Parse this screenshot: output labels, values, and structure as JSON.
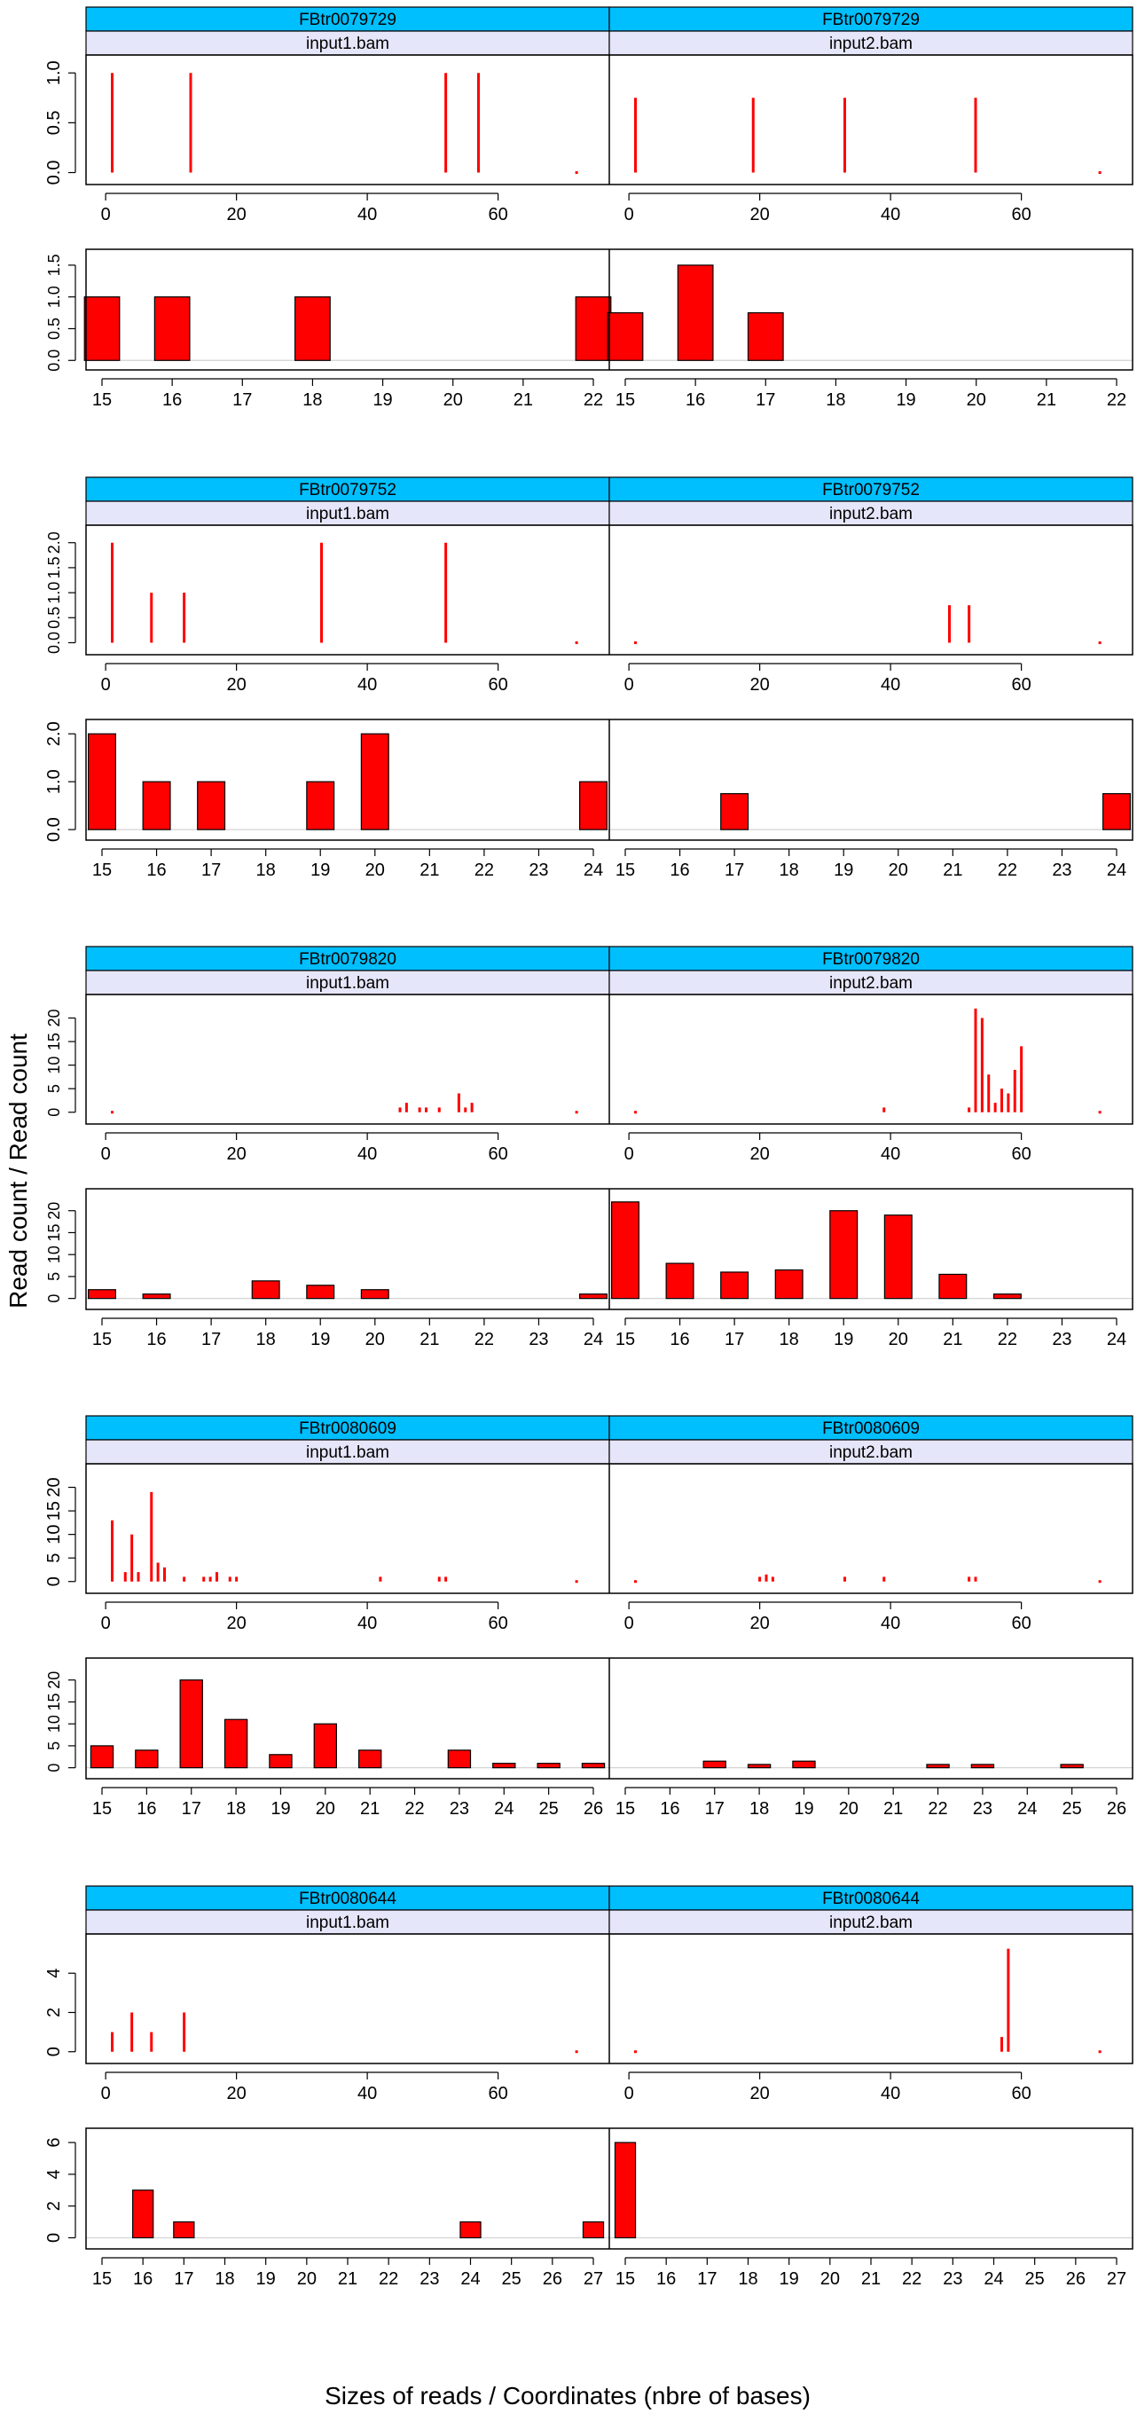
{
  "figure": {
    "ylabel": "Read count / Read count",
    "xlabel": "Sizes of reads / Coordinates (nbre of bases)"
  },
  "colors": {
    "strip_top": "#00BFFF",
    "strip_sub": "#E6E6FA",
    "bar_fill": "#FF0000",
    "bar_stroke": "#000000",
    "spike": "#FF0000",
    "zero_line": "#D3D3D3",
    "frame": "#000000"
  },
  "chart_data": [
    {
      "type": "bar",
      "transcript": "FBtr0079729",
      "coverage": {
        "xlim": [
          -3,
          77
        ],
        "xticks": [
          0,
          20,
          40,
          60
        ],
        "ylim": [
          -0.12,
          1.18
        ],
        "yticks": [
          0.0,
          0.5,
          1.0
        ],
        "ytick_labels": [
          "0.0",
          "0.5",
          "1.0"
        ],
        "panels": [
          {
            "strip": "FBtr0079729",
            "sample": "input1.bam",
            "spikes": [
              [
                1,
                1.0
              ],
              [
                13,
                1.0
              ],
              [
                52,
                1.0
              ],
              [
                57,
                1.0
              ]
            ],
            "dots": [
              72
            ]
          },
          {
            "strip": "FBtr0079729",
            "sample": "input2.bam",
            "spikes": [
              [
                1,
                0.75
              ],
              [
                19,
                0.75
              ],
              [
                33,
                0.75
              ],
              [
                53,
                0.75
              ]
            ],
            "dots": [
              72
            ]
          }
        ]
      },
      "sizes": {
        "categories": [
          15,
          16,
          17,
          18,
          19,
          20,
          21,
          22
        ],
        "ylim": [
          -0.15,
          1.75
        ],
        "yticks": [
          0.0,
          0.5,
          1.0,
          1.5
        ],
        "ytick_labels": [
          "0.0",
          "0.5",
          "1.0",
          "1.5"
        ],
        "tick_label_spacing": "tight",
        "panels": [
          {
            "sample": "input1.bam",
            "values": [
              1,
              1,
              0,
              1,
              0,
              0,
              0,
              1
            ]
          },
          {
            "sample": "input2.bam",
            "values": [
              0.75,
              1.5,
              0.75,
              0,
              0,
              0,
              0,
              0
            ]
          }
        ]
      }
    },
    {
      "type": "bar",
      "transcript": "FBtr0079752",
      "coverage": {
        "xlim": [
          -3,
          77
        ],
        "xticks": [
          0,
          20,
          40,
          60
        ],
        "ylim": [
          -0.24,
          2.35
        ],
        "yticks": [
          0.0,
          0.5,
          1.0,
          1.5,
          2.0
        ],
        "ytick_labels": [
          "0.0",
          "0.5",
          "1.0",
          "1.5",
          "2.0"
        ],
        "tick_label_spacing": "tight",
        "panels": [
          {
            "strip": "FBtr0079752",
            "sample": "input1.bam",
            "spikes": [
              [
                1,
                2.0
              ],
              [
                7,
                1.0
              ],
              [
                12,
                1.0
              ],
              [
                33,
                2.0
              ],
              [
                52,
                2.0
              ]
            ],
            "dots": [
              72
            ]
          },
          {
            "strip": "FBtr0079752",
            "sample": "input2.bam",
            "spikes": [
              [
                49,
                0.75
              ],
              [
                52,
                0.75
              ]
            ],
            "dots": [
              1,
              72
            ]
          }
        ]
      },
      "sizes": {
        "categories": [
          15,
          16,
          17,
          18,
          19,
          20,
          21,
          22,
          23,
          24
        ],
        "ylim": [
          -0.22,
          2.3
        ],
        "yticks": [
          0.0,
          1.0,
          2.0
        ],
        "ytick_labels": [
          "0.0",
          "1.0",
          "2.0"
        ],
        "panels": [
          {
            "sample": "input1.bam",
            "values": [
              2,
              1,
              1,
              0,
              1,
              2,
              0,
              0,
              0,
              1
            ]
          },
          {
            "sample": "input2.bam",
            "values": [
              0,
              0,
              0.75,
              0,
              0,
              0,
              0,
              0,
              0,
              0.75
            ]
          }
        ]
      }
    },
    {
      "type": "bar",
      "transcript": "FBtr0079820",
      "coverage": {
        "xlim": [
          -3,
          77
        ],
        "xticks": [
          0,
          20,
          40,
          60
        ],
        "ylim": [
          -2.5,
          25
        ],
        "yticks": [
          0,
          5,
          10,
          15,
          20
        ],
        "ytick_labels": [
          "0",
          "5",
          "10",
          "15",
          "20"
        ],
        "tick_label_spacing": "tight",
        "panels": [
          {
            "strip": "FBtr0079820",
            "sample": "input1.bam",
            "spikes": [
              [
                45,
                1
              ],
              [
                46,
                2
              ],
              [
                48,
                1
              ],
              [
                49,
                1
              ],
              [
                51,
                1
              ],
              [
                54,
                4
              ],
              [
                55,
                1
              ],
              [
                56,
                2
              ]
            ],
            "dots": [
              1,
              72
            ]
          },
          {
            "strip": "FBtr0079820",
            "sample": "input2.bam",
            "spikes": [
              [
                39,
                1
              ],
              [
                52,
                1
              ],
              [
                53,
                22
              ],
              [
                54,
                20
              ],
              [
                55,
                8
              ],
              [
                56,
                2
              ],
              [
                57,
                5
              ],
              [
                58,
                4
              ],
              [
                59,
                9
              ],
              [
                60,
                14
              ]
            ],
            "dots": [
              1,
              72
            ]
          }
        ]
      },
      "sizes": {
        "categories": [
          15,
          16,
          17,
          18,
          19,
          20,
          21,
          22,
          23,
          24
        ],
        "ylim": [
          -2.5,
          25
        ],
        "yticks": [
          0,
          5,
          10,
          15,
          20
        ],
        "ytick_labels": [
          "0",
          "5",
          "10",
          "15",
          "20"
        ],
        "tick_label_spacing": "tight",
        "panels": [
          {
            "sample": "input1.bam",
            "values": [
              2,
              1,
              0,
              4,
              3,
              2,
              0,
              0,
              0,
              1
            ]
          },
          {
            "sample": "input2.bam",
            "values": [
              22,
              8,
              6,
              6.5,
              20,
              19,
              5.5,
              1,
              0,
              0
            ]
          }
        ]
      }
    },
    {
      "type": "bar",
      "transcript": "FBtr0080609",
      "coverage": {
        "xlim": [
          -3,
          77
        ],
        "xticks": [
          0,
          20,
          40,
          60
        ],
        "ylim": [
          -2.5,
          25
        ],
        "yticks": [
          0,
          5,
          10,
          15,
          20
        ],
        "ytick_labels": [
          "0",
          "5",
          "10",
          "15",
          "20"
        ],
        "panels": [
          {
            "strip": "FBtr0080609",
            "sample": "input1.bam",
            "spikes": [
              [
                1,
                13
              ],
              [
                3,
                2
              ],
              [
                4,
                10
              ],
              [
                5,
                2
              ],
              [
                7,
                19
              ],
              [
                8,
                4
              ],
              [
                9,
                3
              ],
              [
                12,
                1
              ],
              [
                15,
                1
              ],
              [
                16,
                1
              ],
              [
                17,
                2
              ],
              [
                19,
                1
              ],
              [
                20,
                1
              ],
              [
                42,
                1
              ],
              [
                51,
                1
              ],
              [
                52,
                1
              ]
            ],
            "dots": [
              72
            ]
          },
          {
            "strip": "FBtr0080609",
            "sample": "input2.bam",
            "spikes": [
              [
                20,
                1
              ],
              [
                21,
                1.5
              ],
              [
                22,
                1
              ],
              [
                33,
                1
              ],
              [
                39,
                1
              ],
              [
                52,
                1
              ],
              [
                53,
                1
              ]
            ],
            "dots": [
              1,
              72
            ]
          }
        ]
      },
      "sizes": {
        "categories": [
          15,
          16,
          17,
          18,
          19,
          20,
          21,
          22,
          23,
          24,
          25,
          26
        ],
        "ylim": [
          -2.5,
          25
        ],
        "yticks": [
          0,
          5,
          10,
          15,
          20
        ],
        "ytick_labels": [
          "0",
          "5",
          "10",
          "15",
          "20"
        ],
        "tick_label_spacing": "tight",
        "panels": [
          {
            "sample": "input1.bam",
            "values": [
              5,
              4,
              20,
              11,
              3,
              10,
              4,
              0,
              4,
              1,
              1,
              1
            ]
          },
          {
            "sample": "input2.bam",
            "values": [
              0,
              0,
              1.5,
              0.75,
              1.5,
              0,
              0,
              0.75,
              0.75,
              0,
              0.75,
              0
            ]
          }
        ]
      }
    },
    {
      "type": "bar",
      "transcript": "FBtr0080644",
      "coverage": {
        "xlim": [
          -3,
          77
        ],
        "xticks": [
          0,
          20,
          40,
          60
        ],
        "ylim": [
          -0.6,
          6
        ],
        "yticks": [
          0,
          2,
          4
        ],
        "ytick_labels": [
          "0",
          "2",
          "4"
        ],
        "panels": [
          {
            "strip": "FBtr0080644",
            "sample": "input1.bam",
            "spikes": [
              [
                1,
                1
              ],
              [
                4,
                2
              ],
              [
                7,
                1
              ],
              [
                12,
                2
              ]
            ],
            "dots": [
              72
            ]
          },
          {
            "strip": "FBtr0080644",
            "sample": "input2.bam",
            "spikes": [
              [
                57,
                0.75
              ],
              [
                58,
                5.25
              ]
            ],
            "dots": [
              1,
              72
            ]
          }
        ]
      },
      "sizes": {
        "categories": [
          15,
          16,
          17,
          18,
          19,
          20,
          21,
          22,
          23,
          24,
          25,
          26,
          27
        ],
        "ylim": [
          -0.7,
          6.9
        ],
        "yticks": [
          0,
          2,
          4,
          6
        ],
        "ytick_labels": [
          "0",
          "2",
          "4",
          "6"
        ],
        "panels": [
          {
            "sample": "input1.bam",
            "values": [
              0,
              3,
              1,
              0,
              0,
              0,
              0,
              0,
              0,
              1,
              0,
              0,
              1
            ]
          },
          {
            "sample": "input2.bam",
            "values": [
              6,
              0,
              0,
              0,
              0,
              0,
              0,
              0,
              0,
              0,
              0,
              0,
              0
            ]
          }
        ]
      }
    }
  ]
}
